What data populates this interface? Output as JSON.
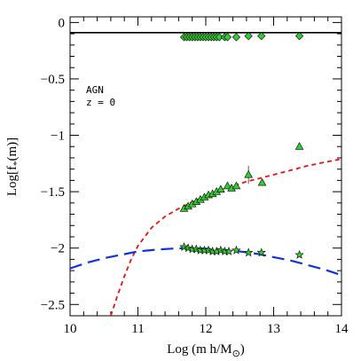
{
  "chart_data": {
    "type": "scatter",
    "xlabel": "Log (m h/M",
    "xlabel_sub": "⊙",
    "xlabel_close": ")",
    "ylabel": "Log[f",
    "ylabel_sub": "*",
    "ylabel_close": "(m)]",
    "xlim": [
      10,
      14
    ],
    "ylim": [
      -2.6,
      0.05
    ],
    "xticks": [
      10,
      11,
      12,
      13,
      14
    ],
    "xtick_labels": [
      "10",
      "11",
      "12",
      "13",
      "14"
    ],
    "yticks": [
      0,
      -0.5,
      -1,
      -1.5,
      -2,
      -2.5
    ],
    "ytick_labels": [
      "0",
      "−0.5",
      "−1",
      "−1.5",
      "−2",
      "−2.5"
    ],
    "annotations": [
      "AGN",
      "z = 0"
    ],
    "reference_line": {
      "y": -0.09
    },
    "diamonds": {
      "marker": "diamond",
      "color": "#33cc33",
      "x": [
        11.68,
        11.72,
        11.76,
        11.8,
        11.84,
        11.88,
        11.92,
        11.96,
        12.0,
        12.04,
        12.08,
        12.12,
        12.16,
        12.2,
        12.28,
        12.32,
        12.45,
        12.63,
        12.82,
        13.38
      ],
      "y": [
        -0.13,
        -0.13,
        -0.13,
        -0.13,
        -0.13,
        -0.13,
        -0.13,
        -0.13,
        -0.13,
        -0.13,
        -0.13,
        -0.13,
        -0.13,
        -0.13,
        -0.13,
        -0.13,
        -0.13,
        -0.12,
        -0.12,
        -0.12
      ]
    },
    "triangles": {
      "marker": "triangle",
      "color": "#33cc33",
      "x": [
        11.68,
        11.74,
        11.8,
        11.86,
        11.92,
        11.98,
        12.04,
        12.1,
        12.16,
        12.22,
        12.32,
        12.38,
        12.45,
        12.63,
        12.83,
        13.38
      ],
      "y": [
        -1.65,
        -1.63,
        -1.61,
        -1.59,
        -1.57,
        -1.55,
        -1.53,
        -1.52,
        -1.5,
        -1.48,
        -1.45,
        -1.47,
        -1.45,
        -1.35,
        -1.42,
        -1.1
      ],
      "error_bar": {
        "x": 12.63,
        "y_low": -1.43,
        "y_high": -1.27
      }
    },
    "stars": {
      "marker": "star",
      "color": "#33cc33",
      "x": [
        11.68,
        11.74,
        11.8,
        11.86,
        11.92,
        11.98,
        12.04,
        12.1,
        12.16,
        12.22,
        12.28,
        12.34,
        12.45,
        12.63,
        12.82,
        13.38
      ],
      "y": [
        -1.99,
        -2.0,
        -2.01,
        -2.01,
        -2.02,
        -2.02,
        -2.02,
        -2.03,
        -2.03,
        -2.02,
        -2.03,
        -2.03,
        -2.02,
        -2.04,
        -2.04,
        -2.06
      ]
    },
    "curves": [
      {
        "style": "dashed",
        "color": "#ee1111",
        "x": [
          10.6,
          10.7,
          10.8,
          10.9,
          11.0,
          11.2,
          11.4,
          11.6,
          11.8,
          12.0,
          12.2,
          12.4,
          12.6,
          12.8,
          13.0,
          13.25,
          13.5,
          13.75,
          14.0
        ],
        "y": [
          -2.6,
          -2.42,
          -2.25,
          -2.1,
          -1.98,
          -1.82,
          -1.72,
          -1.65,
          -1.59,
          -1.54,
          -1.49,
          -1.45,
          -1.41,
          -1.38,
          -1.35,
          -1.31,
          -1.27,
          -1.24,
          -1.21
        ]
      },
      {
        "style": "dashed",
        "color": "#1133dd",
        "x": [
          10.0,
          10.25,
          10.5,
          10.75,
          11.0,
          11.25,
          11.5,
          11.75,
          12.0,
          12.25,
          12.5,
          12.75,
          13.0,
          13.25,
          13.5,
          13.75,
          14.0
        ],
        "y": [
          -2.18,
          -2.13,
          -2.09,
          -2.06,
          -2.03,
          -2.015,
          -2.005,
          -2.0,
          -2.005,
          -2.015,
          -2.03,
          -2.05,
          -2.08,
          -2.11,
          -2.15,
          -2.19,
          -2.24
        ]
      }
    ]
  }
}
